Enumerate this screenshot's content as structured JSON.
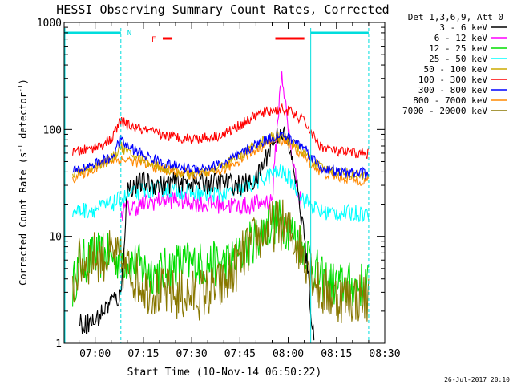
{
  "chart_data": {
    "type": "line",
    "title": "HESSI Observing Summary Count Rates, Corrected",
    "xlabel": "Start Time (10-Nov-14 06:50:22)",
    "ylabel": "Corrected Count Rate (s",
    "ylabel_sup": "-1",
    "ylabel_tail": " detector",
    "ylabel_tail_sup": "-1",
    "ylabel_close": ")",
    "y_scale": "log",
    "ylim": [
      1,
      1000
    ],
    "xlim": [
      "06:50:22",
      "08:30"
    ],
    "x_ticks": [
      "07:00",
      "07:15",
      "07:30",
      "07:45",
      "08:00",
      "08:15",
      "08:30"
    ],
    "y_ticks": [
      "1",
      "10",
      "100",
      "1000"
    ],
    "legend_header": "Det 1,3,6,9, Att 0",
    "legend_position": "top-right",
    "timestamp": "26-Jul-2017 20:10",
    "annotations": {
      "night_label": "N",
      "flare_label": "F"
    },
    "attenuator_intervals": [
      [
        "06:50:22",
        "07:08"
      ],
      [
        "08:07",
        "08:25"
      ]
    ],
    "flare_intervals": [
      [
        "07:21",
        "07:24"
      ],
      [
        "07:56",
        "08:05"
      ]
    ],
    "series": [
      {
        "name": "3 - 6 keV",
        "color": "#000000",
        "x": [
          "06:55",
          "07:00",
          "07:05",
          "07:08",
          "07:10",
          "07:15",
          "07:20",
          "07:25",
          "07:30",
          "07:35",
          "07:40",
          "07:45",
          "07:50",
          "07:55",
          "07:58",
          "08:00",
          "08:02",
          "08:05",
          "08:08"
        ],
        "values": [
          1.5,
          1.6,
          2.5,
          2.7,
          28,
          32,
          30,
          32,
          32,
          31,
          32,
          30,
          33,
          75,
          100,
          70,
          40,
          10,
          1
        ]
      },
      {
        "name": "6 - 12 keV",
        "color": "#ff00ff",
        "x": [
          "07:08",
          "07:10",
          "07:15",
          "07:20",
          "07:25",
          "07:30",
          "07:35",
          "07:40",
          "07:45",
          "07:50",
          "07:55",
          "07:57",
          "07:58",
          "08:00",
          "08:02",
          "08:04"
        ],
        "values": [
          17,
          18,
          20,
          22,
          22,
          21,
          20,
          20,
          19,
          20,
          22,
          150,
          350,
          100,
          40,
          20
        ]
      },
      {
        "name": "12 - 25 keV",
        "color": "#00dd00",
        "x": [
          "06:53",
          "06:55",
          "07:00",
          "07:05",
          "07:10",
          "07:15",
          "07:20",
          "07:25",
          "07:30",
          "07:35",
          "07:40",
          "07:45",
          "07:50",
          "07:55",
          "07:58",
          "08:00",
          "08:05",
          "08:10",
          "08:15",
          "08:20",
          "08:25"
        ],
        "values": [
          3.3,
          5.5,
          6.5,
          6.5,
          6,
          5,
          4.5,
          5.5,
          5.5,
          5.5,
          5.5,
          6.5,
          10,
          13.5,
          14,
          12,
          8,
          4,
          3.5,
          3.5,
          3.5
        ]
      },
      {
        "name": "25 - 50 keV",
        "color": "#00ffff",
        "x": [
          "06:53",
          "07:00",
          "07:05",
          "07:10",
          "07:15",
          "07:20",
          "07:25",
          "07:30",
          "07:35",
          "07:40",
          "07:45",
          "07:50",
          "07:55",
          "07:58",
          "08:00",
          "08:05",
          "08:10",
          "08:15",
          "08:20",
          "08:25"
        ],
        "values": [
          17,
          18,
          20,
          24,
          27,
          28,
          27,
          26,
          25,
          25,
          27,
          32,
          38,
          40,
          36,
          22,
          17,
          16.5,
          16.5,
          16.5
        ]
      },
      {
        "name": "50 - 100 keV",
        "color": "#ccaa00",
        "x": [
          "06:53",
          "07:00",
          "07:05",
          "07:08",
          "07:10",
          "07:15",
          "07:20",
          "07:25",
          "07:30",
          "07:35",
          "07:40",
          "07:45",
          "07:50",
          "07:55",
          "07:58",
          "08:00",
          "08:05",
          "08:10",
          "08:15",
          "08:20",
          "08:25"
        ],
        "values": [
          38,
          46,
          52,
          70,
          60,
          52,
          45,
          40,
          38,
          40,
          46,
          57,
          72,
          85,
          86,
          80,
          60,
          44,
          40,
          38,
          37
        ]
      },
      {
        "name": "100 - 300 keV",
        "color": "#ff0000",
        "x": [
          "06:53",
          "07:00",
          "07:05",
          "07:08",
          "07:10",
          "07:15",
          "07:20",
          "07:25",
          "07:30",
          "07:35",
          "07:40",
          "07:45",
          "07:50",
          "07:55",
          "07:58",
          "08:00",
          "08:05",
          "08:08",
          "08:10",
          "08:15",
          "08:20",
          "08:25"
        ],
        "values": [
          60,
          68,
          80,
          120,
          110,
          98,
          90,
          85,
          82,
          84,
          90,
          110,
          135,
          150,
          155,
          150,
          120,
          85,
          70,
          62,
          60,
          60
        ]
      },
      {
        "name": "300 - 800 keV",
        "color": "#0000ff",
        "x": [
          "06:53",
          "07:00",
          "07:05",
          "07:08",
          "07:10",
          "07:15",
          "07:20",
          "07:25",
          "07:30",
          "07:35",
          "07:40",
          "07:45",
          "07:50",
          "07:55",
          "07:58",
          "08:00",
          "08:05",
          "08:08",
          "08:10",
          "08:15",
          "08:20",
          "08:25"
        ],
        "values": [
          40,
          48,
          54,
          80,
          70,
          58,
          50,
          45,
          43,
          44,
          48,
          58,
          72,
          85,
          88,
          84,
          68,
          52,
          44,
          40,
          39,
          39
        ]
      },
      {
        "name": "800 - 7000 keV",
        "color": "#ff8800",
        "x": [
          "06:53",
          "07:00",
          "07:05",
          "07:10",
          "07:15",
          "07:20",
          "07:25",
          "07:30",
          "07:35",
          "07:40",
          "07:45",
          "07:50",
          "07:55",
          "07:58",
          "08:00",
          "08:05",
          "08:10",
          "08:15",
          "08:20",
          "08:25"
        ],
        "values": [
          35,
          44,
          52,
          52,
          48,
          43,
          40,
          38,
          38,
          42,
          52,
          65,
          78,
          80,
          75,
          55,
          40,
          36,
          34,
          33
        ]
      },
      {
        "name": "7000 - 20000 keV",
        "color": "#887700",
        "x": [
          "06:53",
          "06:55",
          "07:00",
          "07:05",
          "07:10",
          "07:15",
          "07:20",
          "07:25",
          "07:30",
          "07:35",
          "07:40",
          "07:45",
          "07:50",
          "07:55",
          "07:58",
          "08:00",
          "08:05",
          "08:10",
          "08:15",
          "08:20",
          "08:25"
        ],
        "values": [
          3.3,
          5.5,
          6.5,
          6.5,
          5,
          3.5,
          3,
          2.8,
          2.8,
          3,
          3.5,
          6,
          9.5,
          12.5,
          13,
          11,
          7,
          3,
          2.7,
          2.7,
          2.7
        ]
      }
    ]
  }
}
